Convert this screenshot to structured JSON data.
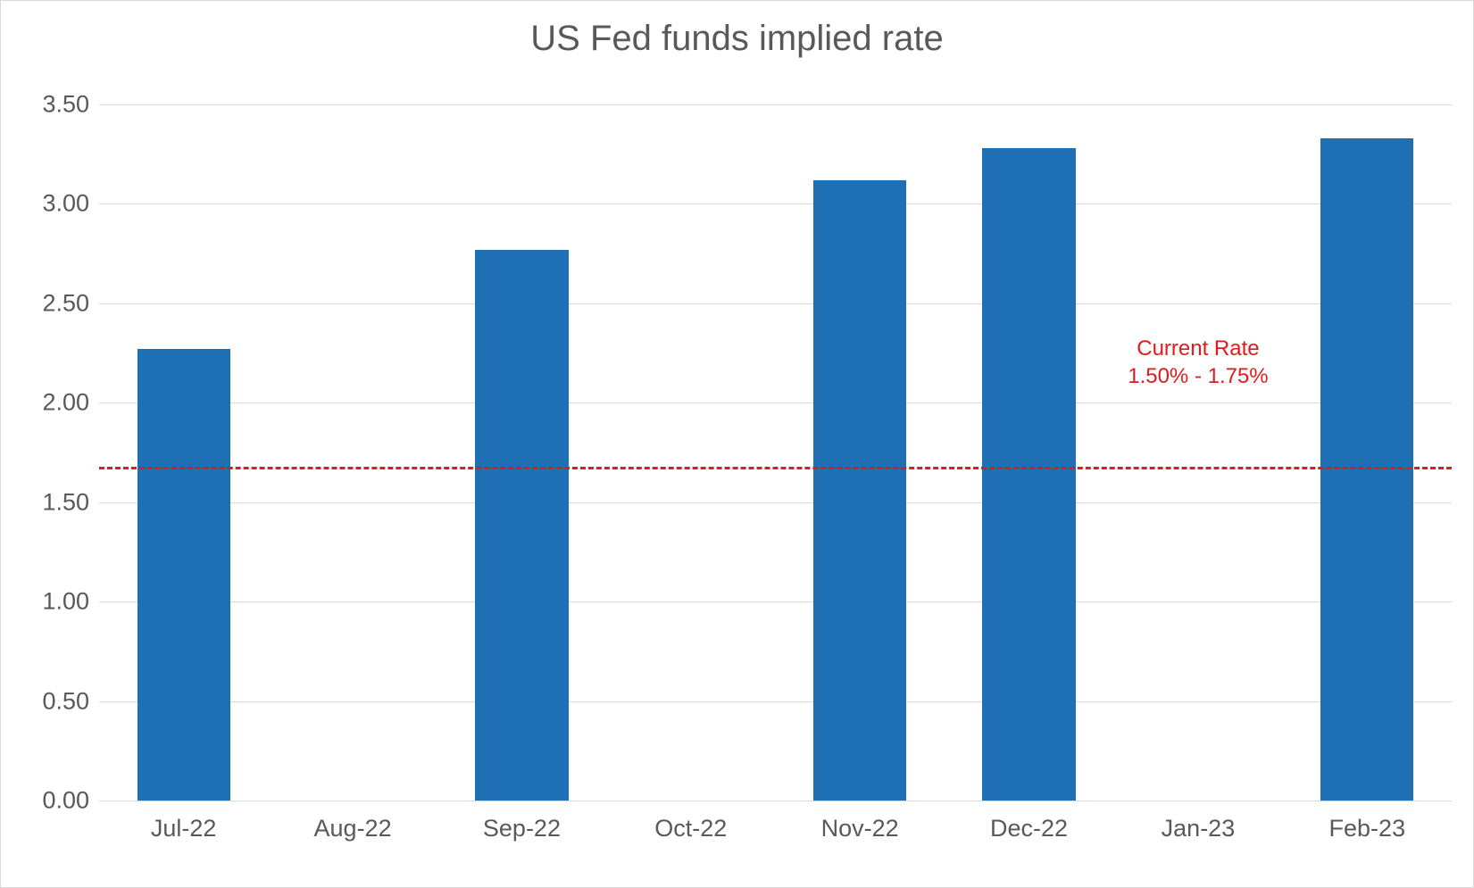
{
  "chart": {
    "type": "bar",
    "title": "US Fed funds implied rate",
    "title_fontsize": 40,
    "title_color": "#595959",
    "background_color": "#ffffff",
    "border_color": "#d9d9d9",
    "categories": [
      "Jul-22",
      "Aug-22",
      "Sep-22",
      "Oct-22",
      "Nov-22",
      "Dec-22",
      "Jan-23",
      "Feb-23"
    ],
    "values": [
      2.27,
      null,
      2.77,
      null,
      3.12,
      3.28,
      null,
      3.33
    ],
    "bar_color": "#1f6fb5",
    "bar_width_ratio": 0.55,
    "y_axis": {
      "min": 0.0,
      "max": 3.5,
      "step": 0.5,
      "tick_labels": [
        "0.00",
        "0.50",
        "1.00",
        "1.50",
        "2.00",
        "2.50",
        "3.00",
        "3.50"
      ],
      "label_fontsize": 27,
      "label_color": "#595959"
    },
    "x_axis": {
      "label_fontsize": 27,
      "label_color": "#595959"
    },
    "grid": {
      "show": true,
      "color": "#d9d9d9"
    },
    "reference_line": {
      "value": 1.68,
      "color": "#e11b1b",
      "style": "dashed",
      "width": 3
    },
    "annotation": {
      "line1": "Current Rate",
      "line2": "1.50% - 1.75%",
      "color": "#e11b1b",
      "fontsize": 24,
      "x_category_index": 6,
      "y_value": 2.2
    }
  }
}
